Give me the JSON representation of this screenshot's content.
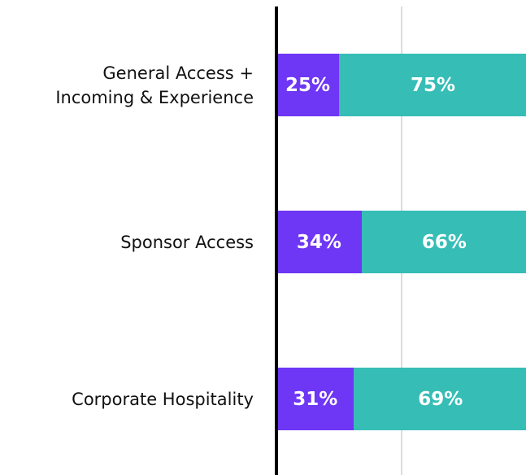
{
  "chart_data": {
    "type": "stacked_bar_horizontal",
    "categories": [
      "General Access +\nIncoming & Experience",
      "Sponsor Access",
      "Corporate Hospitality"
    ],
    "series": [
      {
        "color": "#6e36f5",
        "values": [
          25,
          34,
          31
        ],
        "value_labels": [
          "25%",
          "34%",
          "31%"
        ]
      },
      {
        "color": "#36bdb6",
        "values": [
          75,
          66,
          69
        ],
        "value_labels": [
          "75%",
          "66%",
          "69%"
        ]
      }
    ],
    "xlim": [
      0,
      100
    ],
    "xticks": [
      50
    ],
    "grid": true
  }
}
